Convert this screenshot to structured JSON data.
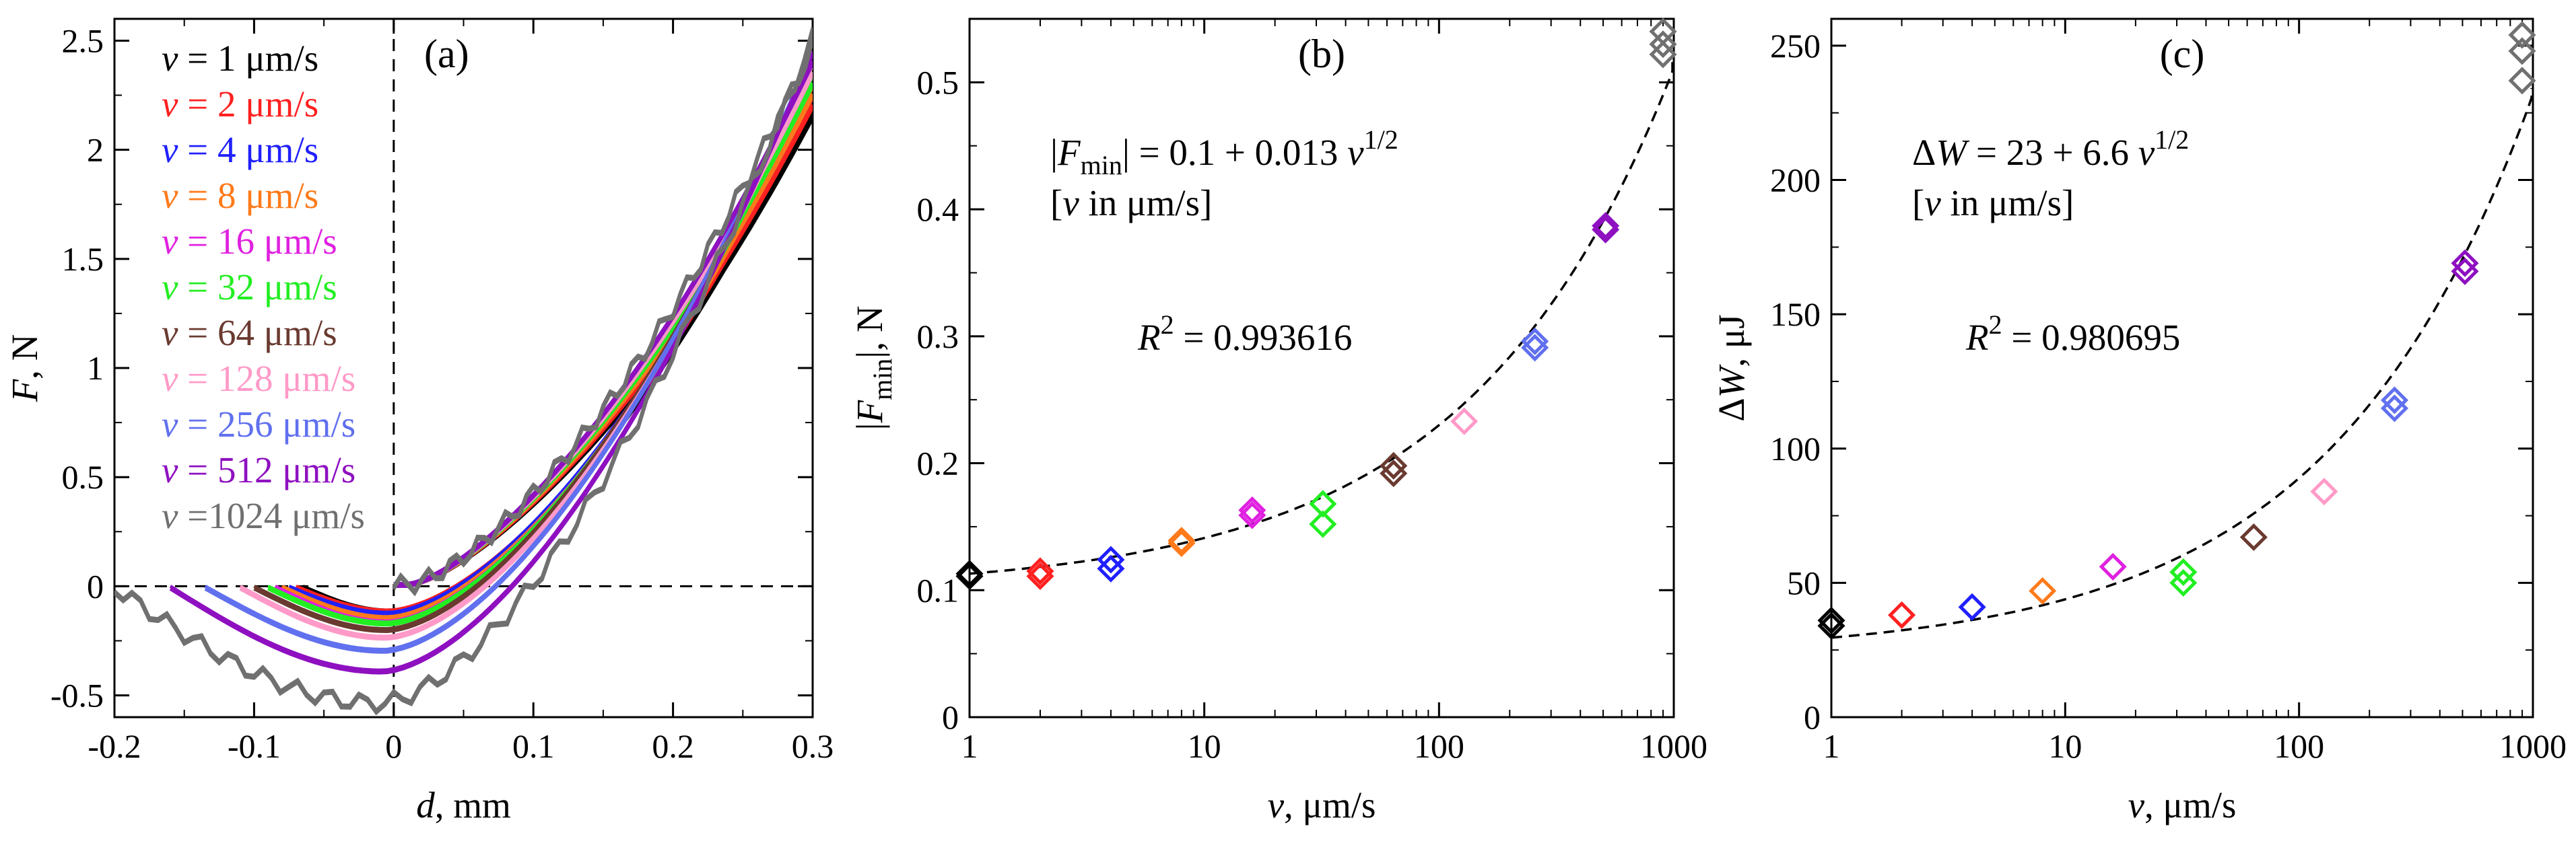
{
  "figure": {
    "background": "#ffffff"
  },
  "chart_data": [
    {
      "id": "a",
      "type": "line",
      "panel_label": "(a)",
      "xlabel": "d, mm",
      "ylabel": "F, N",
      "xlim": [
        -0.2,
        0.3
      ],
      "ylim": [
        -0.6,
        2.6
      ],
      "x_ticks": [
        -0.2,
        -0.1,
        0,
        0.1,
        0.2,
        0.3
      ],
      "x_tick_labels": [
        "-0.2",
        "-0.1",
        "0",
        "0.1",
        "0.2",
        "0.3"
      ],
      "y_ticks": [
        -0.5,
        0,
        0.5,
        1,
        1.5,
        2,
        2.5
      ],
      "y_tick_labels": [
        "-0.5",
        "0",
        "0.5",
        "1",
        "1.5",
        "2",
        "2.5"
      ],
      "reference_lines": [
        "x = 0 (dashed)",
        "y = 0 (dashed)"
      ],
      "legend_position": "top-left",
      "series": [
        {
          "name": "v = 1 μm/s",
          "v_label": "v",
          "rest": " = 1 μm/s",
          "color": "#000000",
          "d_start": -0.065,
          "f_min": -0.11,
          "f_end": 2.2
        },
        {
          "name": "v = 2 μm/s",
          "v_label": "v",
          "rest": " = 2 μm/s",
          "color": "#ff2020",
          "d_start": -0.07,
          "f_min": -0.11,
          "f_end": 2.25
        },
        {
          "name": "v = 4 μm/s",
          "v_label": "v",
          "rest": " = 4 μm/s",
          "color": "#2020ff",
          "d_start": -0.075,
          "f_min": -0.12,
          "f_end": 2.3
        },
        {
          "name": "v = 8 μm/s",
          "v_label": "v",
          "rest": " = 8 μm/s",
          "color": "#ff7a1a",
          "d_start": -0.08,
          "f_min": -0.14,
          "f_end": 2.3
        },
        {
          "name": "v = 16 μm/s",
          "v_label": "v",
          "rest": " = 16 μm/s",
          "color": "#e020e0",
          "d_start": -0.085,
          "f_min": -0.16,
          "f_end": 2.35
        },
        {
          "name": "v = 32 μm/s",
          "v_label": "v",
          "rest": " = 32 μm/s",
          "color": "#22ee22",
          "d_start": -0.09,
          "f_min": -0.165,
          "f_end": 2.35
        },
        {
          "name": "v = 64 μm/s",
          "v_label": "v",
          "rest": " = 64 μm/s",
          "color": "#6a3a30",
          "d_start": -0.1,
          "f_min": -0.195,
          "f_end": 2.4
        },
        {
          "name": "v = 128 μm/s",
          "v_label": "v",
          "rest": " = 128 μm/s",
          "color": "#ff9ac8",
          "d_start": -0.11,
          "f_min": -0.23,
          "f_end": 2.4
        },
        {
          "name": "v = 256 μm/s",
          "v_label": "v",
          "rest": " = 256 μm/s",
          "color": "#6070ee",
          "d_start": -0.135,
          "f_min": -0.29,
          "f_end": 2.45
        },
        {
          "name": "v = 512 μm/s",
          "v_label": "v",
          "rest": " = 512 μm/s",
          "color": "#8e10c0",
          "d_start": -0.16,
          "f_min": -0.385,
          "f_end": 2.45
        },
        {
          "name": "v =1024 μm/s",
          "v_label": "v",
          "rest": " =1024 μm/s",
          "color": "#707070",
          "d_start": -0.2,
          "f_min": -0.53,
          "f_end": 2.52
        }
      ]
    },
    {
      "id": "b",
      "type": "scatter",
      "panel_label": "(b)",
      "xlabel": "v, μm/s",
      "ylabel": "|Fmin|, N",
      "x_scale": "log",
      "xlim": [
        1,
        1000
      ],
      "ylim": [
        0,
        0.55
      ],
      "x_ticks": [
        1,
        10,
        100,
        1000
      ],
      "x_tick_labels": [
        "1",
        "10",
        "100",
        "1000"
      ],
      "y_ticks": [
        0,
        0.1,
        0.2,
        0.3,
        0.4,
        0.5
      ],
      "y_tick_labels": [
        "0",
        "0.1",
        "0.2",
        "0.3",
        "0.4",
        "0.5"
      ],
      "fit": {
        "a": 0.1,
        "b": 0.013,
        "style": "dashed"
      },
      "equation_prefix": "|F",
      "equation_sub": "min",
      "equation_body": "| = 0.1 + 0.013 ",
      "equation_var": "v",
      "equation_sup": "1/2",
      "units_note": "[v in μm/s]",
      "r2_label": "R",
      "r2_sup": "2",
      "r2_value": " = 0.993616",
      "marker": "diamond",
      "points": [
        {
          "v": 1,
          "y": 0.113,
          "color": "#000000"
        },
        {
          "v": 1,
          "y": 0.111,
          "color": "#000000"
        },
        {
          "v": 2,
          "y": 0.115,
          "color": "#ff2020"
        },
        {
          "v": 2,
          "y": 0.111,
          "color": "#ff2020"
        },
        {
          "v": 4,
          "y": 0.124,
          "color": "#2020ff"
        },
        {
          "v": 4,
          "y": 0.117,
          "color": "#2020ff"
        },
        {
          "v": 8,
          "y": 0.139,
          "color": "#ff7a1a"
        },
        {
          "v": 8,
          "y": 0.137,
          "color": "#ff7a1a"
        },
        {
          "v": 16,
          "y": 0.163,
          "color": "#e020e0"
        },
        {
          "v": 16,
          "y": 0.159,
          "color": "#e020e0"
        },
        {
          "v": 32,
          "y": 0.168,
          "color": "#22ee22"
        },
        {
          "v": 32,
          "y": 0.152,
          "color": "#22ee22"
        },
        {
          "v": 64,
          "y": 0.198,
          "color": "#6a3a30"
        },
        {
          "v": 64,
          "y": 0.192,
          "color": "#6a3a30"
        },
        {
          "v": 128,
          "y": 0.233,
          "color": "#ff9ac8"
        },
        {
          "v": 256,
          "y": 0.296,
          "color": "#6070ee"
        },
        {
          "v": 256,
          "y": 0.291,
          "color": "#6070ee"
        },
        {
          "v": 512,
          "y": 0.387,
          "color": "#8e10c0"
        },
        {
          "v": 512,
          "y": 0.384,
          "color": "#8e10c0"
        },
        {
          "v": 1024,
          "y": 0.54,
          "color": "#707070"
        },
        {
          "v": 1024,
          "y": 0.53,
          "color": "#707070"
        },
        {
          "v": 1024,
          "y": 0.522,
          "color": "#707070"
        }
      ]
    },
    {
      "id": "c",
      "type": "scatter",
      "panel_label": "(c)",
      "xlabel": "v, μm/s",
      "ylabel": "ΔW, μJ",
      "x_scale": "log",
      "xlim": [
        1,
        1000
      ],
      "ylim": [
        0,
        260
      ],
      "x_ticks": [
        1,
        10,
        100,
        1000
      ],
      "x_tick_labels": [
        "1",
        "10",
        "100",
        "1000"
      ],
      "y_ticks": [
        0,
        50,
        100,
        150,
        200,
        250
      ],
      "y_tick_labels": [
        "0",
        "50",
        "100",
        "150",
        "200",
        "250"
      ],
      "fit": {
        "a": 23,
        "b": 6.6,
        "style": "dashed"
      },
      "equation_body": "ΔW = 23 + 6.6 ",
      "equation_var": "v",
      "equation_sup": "1/2",
      "units_note": "[v in μm/s]",
      "r2_label": "R",
      "r2_sup": "2",
      "r2_value": " = 0.980695",
      "marker": "diamond",
      "points": [
        {
          "v": 1,
          "y": 36,
          "color": "#000000"
        },
        {
          "v": 1,
          "y": 34,
          "color": "#000000"
        },
        {
          "v": 2,
          "y": 38,
          "color": "#ff2020"
        },
        {
          "v": 4,
          "y": 41,
          "color": "#2020ff"
        },
        {
          "v": 8,
          "y": 47,
          "color": "#ff7a1a"
        },
        {
          "v": 16,
          "y": 56,
          "color": "#e020e0"
        },
        {
          "v": 32,
          "y": 54,
          "color": "#22ee22"
        },
        {
          "v": 32,
          "y": 50,
          "color": "#22ee22"
        },
        {
          "v": 64,
          "y": 67,
          "color": "#6a3a30"
        },
        {
          "v": 128,
          "y": 84,
          "color": "#ff9ac8"
        },
        {
          "v": 256,
          "y": 118,
          "color": "#6070ee"
        },
        {
          "v": 256,
          "y": 115,
          "color": "#6070ee"
        },
        {
          "v": 512,
          "y": 169,
          "color": "#8e10c0"
        },
        {
          "v": 512,
          "y": 166,
          "color": "#8e10c0"
        },
        {
          "v": 1024,
          "y": 254,
          "color": "#707070"
        },
        {
          "v": 1024,
          "y": 248,
          "color": "#707070"
        },
        {
          "v": 1024,
          "y": 237,
          "color": "#707070"
        }
      ]
    }
  ]
}
